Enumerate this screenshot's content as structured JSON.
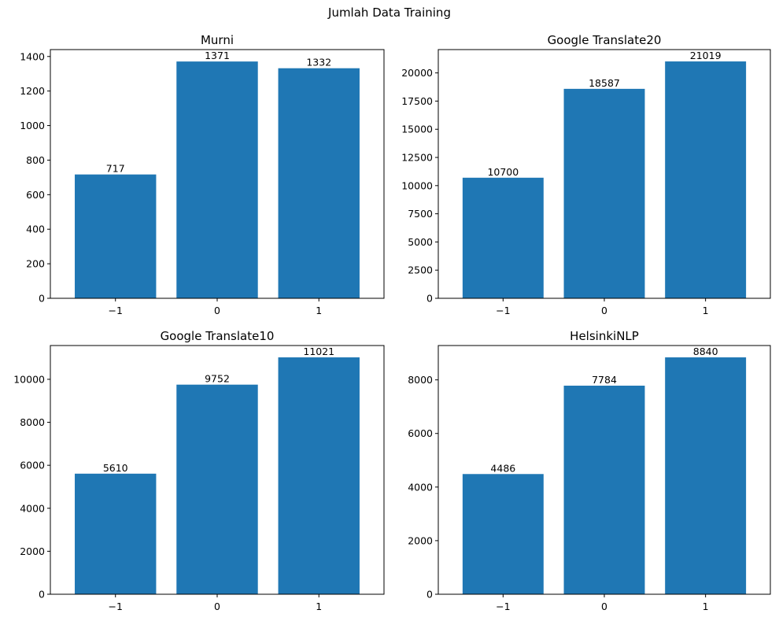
{
  "figure": {
    "title": "Jumlah Data Training"
  },
  "chart_data": [
    {
      "type": "bar",
      "title": "Murni",
      "categories": [
        "−1",
        "0",
        "1"
      ],
      "values": [
        717,
        1371,
        1332
      ],
      "ylim": [
        0,
        1440
      ],
      "yticks": [
        0,
        200,
        400,
        600,
        800,
        1000,
        1200,
        1400
      ],
      "grid": false,
      "bar_color": "#1f77b4"
    },
    {
      "type": "bar",
      "title": "Google Translate20",
      "categories": [
        "−1",
        "0",
        "1"
      ],
      "values": [
        10700,
        18587,
        21019
      ],
      "ylim": [
        0,
        22070
      ],
      "yticks": [
        0,
        2500,
        5000,
        7500,
        10000,
        12500,
        15000,
        17500,
        20000
      ],
      "grid": false,
      "bar_color": "#1f77b4"
    },
    {
      "type": "bar",
      "title": "Google Translate10",
      "categories": [
        "−1",
        "0",
        "1"
      ],
      "values": [
        5610,
        9752,
        11021
      ],
      "ylim": [
        0,
        11572
      ],
      "yticks": [
        0,
        2000,
        4000,
        6000,
        8000,
        10000
      ],
      "grid": false,
      "bar_color": "#1f77b4"
    },
    {
      "type": "bar",
      "title": "HelsinkiNLP",
      "categories": [
        "−1",
        "0",
        "1"
      ],
      "values": [
        4486,
        7784,
        8840
      ],
      "ylim": [
        0,
        9282
      ],
      "yticks": [
        0,
        2000,
        4000,
        6000,
        8000
      ],
      "grid": false,
      "bar_color": "#1f77b4"
    }
  ]
}
